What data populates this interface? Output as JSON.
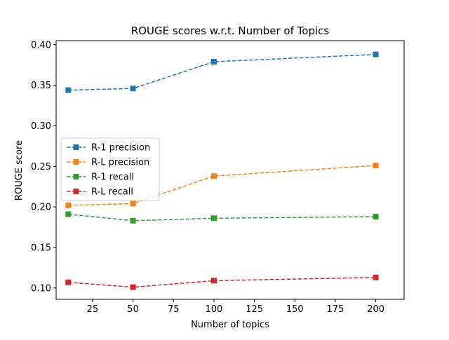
{
  "chart_data": {
    "type": "line",
    "title": "ROUGE scores w.r.t. Number of Topics",
    "xlabel": "Number of topics",
    "ylabel": "ROUGE score",
    "x": [
      10,
      50,
      100,
      200
    ],
    "xlim": [
      2.5,
      217.5
    ],
    "ylim": [
      0.086,
      0.405
    ],
    "xticks": [
      25,
      50,
      75,
      100,
      125,
      150,
      175,
      200
    ],
    "yticks": [
      0.1,
      0.15,
      0.2,
      0.25,
      0.3,
      0.35,
      0.4
    ],
    "ytick_labels": [
      "0.10",
      "0.15",
      "0.20",
      "0.25",
      "0.30",
      "0.35",
      "0.40"
    ],
    "legend_position": "center-left",
    "line_style": "dashed",
    "marker": "square",
    "grid": false,
    "series": [
      {
        "name": "R-1 precision",
        "color": "#1f77b4",
        "values": [
          0.344,
          0.346,
          0.379,
          0.388
        ]
      },
      {
        "name": "R-L precision",
        "color": "#ff7f0e",
        "values": [
          0.202,
          0.204,
          0.238,
          0.251
        ]
      },
      {
        "name": "R-1 recall",
        "color": "#2ca02c",
        "values": [
          0.191,
          0.183,
          0.186,
          0.188
        ]
      },
      {
        "name": "R-L recall",
        "color": "#d62728",
        "values": [
          0.107,
          0.101,
          0.109,
          0.113
        ]
      }
    ]
  }
}
